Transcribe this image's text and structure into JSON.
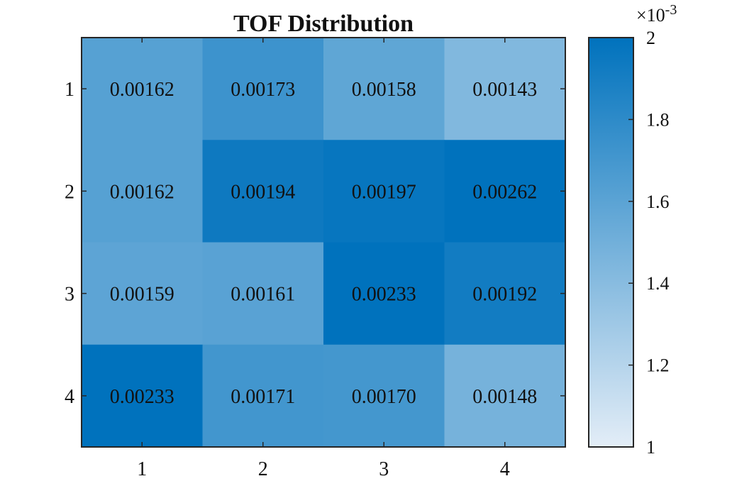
{
  "chart_data": {
    "type": "heatmap",
    "title": "TOF Distribution",
    "xlabel": "",
    "ylabel": "",
    "x_categories": [
      "1",
      "2",
      "3",
      "4"
    ],
    "y_categories": [
      "1",
      "2",
      "3",
      "4"
    ],
    "values": [
      [
        0.00162,
        0.00173,
        0.00158,
        0.00143
      ],
      [
        0.00162,
        0.00194,
        0.00197,
        0.00262
      ],
      [
        0.00159,
        0.00161,
        0.00233,
        0.00192
      ],
      [
        0.00233,
        0.00171,
        0.0017,
        0.00148
      ]
    ],
    "cell_labels": [
      [
        "0.00162",
        "0.00173",
        "0.00158",
        "0.00143"
      ],
      [
        "0.00162",
        "0.00194",
        "0.00197",
        "0.00262"
      ],
      [
        "0.00159",
        "0.00161",
        "0.00233",
        "0.00192"
      ],
      [
        "0.00233",
        "0.00171",
        "0.00170",
        "0.00148"
      ]
    ],
    "colorbar": {
      "range": [
        0.001,
        0.002
      ],
      "ticks": [
        1,
        1.2,
        1.4,
        1.6,
        1.8,
        2
      ],
      "tick_labels": [
        "1",
        "1.2",
        "1.4",
        "1.6",
        "1.8",
        "2"
      ],
      "exponent_base": "×10",
      "exponent_power": "-3",
      "color_low": "#e3edf7",
      "color_high": "#0072bd"
    }
  }
}
